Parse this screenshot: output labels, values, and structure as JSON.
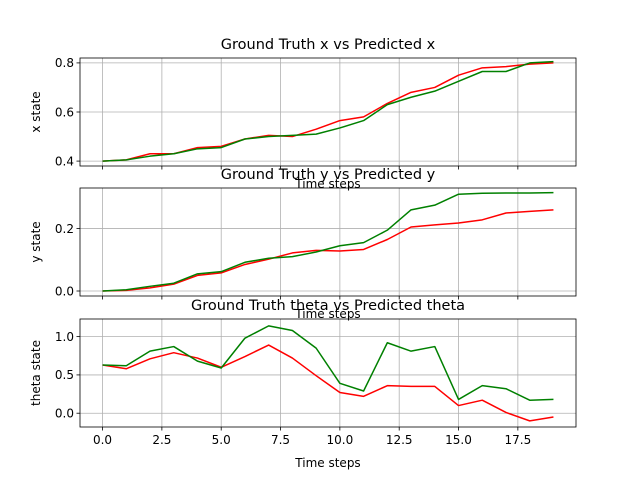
{
  "chart_data": [
    {
      "type": "line",
      "title": "Ground Truth x vs Predicted x",
      "xlabel": "Time steps",
      "ylabel": "x state",
      "xlim": [
        -0.95,
        19.95
      ],
      "ylim": [
        0.38,
        0.82
      ],
      "yticks": [
        0.4,
        0.6,
        0.8
      ],
      "yticklabels": [
        "0.4",
        "0.6",
        "0.8"
      ],
      "grid": true,
      "x": [
        0,
        1,
        2,
        3,
        4,
        5,
        6,
        7,
        8,
        9,
        10,
        11,
        12,
        13,
        14,
        15,
        16,
        17,
        18,
        19
      ],
      "series": [
        {
          "color": "#ff0000",
          "values": [
            0.4,
            0.405,
            0.43,
            0.43,
            0.455,
            0.46,
            0.49,
            0.505,
            0.5,
            0.53,
            0.565,
            0.58,
            0.635,
            0.68,
            0.7,
            0.75,
            0.78,
            0.785,
            0.795,
            0.8
          ]
        },
        {
          "color": "#008000",
          "values": [
            0.4,
            0.405,
            0.42,
            0.43,
            0.45,
            0.455,
            0.49,
            0.5,
            0.505,
            0.51,
            0.535,
            0.565,
            0.63,
            0.66,
            0.685,
            0.725,
            0.765,
            0.765,
            0.8,
            0.805
          ]
        }
      ]
    },
    {
      "type": "line",
      "title": "Ground Truth y vs Predicted y",
      "xlabel": "Time steps",
      "ylabel": "y state",
      "xlim": [
        -0.95,
        19.95
      ],
      "ylim": [
        -0.016,
        0.33
      ],
      "yticks": [
        0.0,
        0.2
      ],
      "yticklabels": [
        "0.0",
        "0.2"
      ],
      "grid": true,
      "x": [
        0,
        1,
        2,
        3,
        4,
        5,
        6,
        7,
        8,
        9,
        10,
        11,
        12,
        13,
        14,
        15,
        16,
        17,
        18,
        19
      ],
      "series": [
        {
          "color": "#ff0000",
          "values": [
            0.0,
            0.002,
            0.01,
            0.022,
            0.05,
            0.058,
            0.085,
            0.102,
            0.122,
            0.13,
            0.128,
            0.133,
            0.165,
            0.205,
            0.212,
            0.218,
            0.228,
            0.25,
            0.255,
            0.26
          ]
        },
        {
          "color": "#008000",
          "values": [
            0.0,
            0.004,
            0.015,
            0.025,
            0.055,
            0.062,
            0.092,
            0.105,
            0.11,
            0.125,
            0.145,
            0.155,
            0.195,
            0.26,
            0.275,
            0.31,
            0.313,
            0.314,
            0.314,
            0.315
          ]
        }
      ]
    },
    {
      "type": "line",
      "title": "Ground Truth theta vs Predicted theta",
      "xlabel": "Time steps",
      "ylabel": "theta state",
      "xlim": [
        -0.95,
        19.95
      ],
      "ylim": [
        -0.18,
        1.23
      ],
      "yticks": [
        0.0,
        0.5,
        1.0
      ],
      "yticklabels": [
        "0.0",
        "0.5",
        "1.0"
      ],
      "xticks": [
        0.0,
        2.5,
        5.0,
        7.5,
        10.0,
        12.5,
        15.0,
        17.5
      ],
      "xticklabels": [
        "0.0",
        "2.5",
        "5.0",
        "7.5",
        "10.0",
        "12.5",
        "15.0",
        "17.5"
      ],
      "grid": true,
      "x": [
        0,
        1,
        2,
        3,
        4,
        5,
        6,
        7,
        8,
        9,
        10,
        11,
        12,
        13,
        14,
        15,
        16,
        17,
        18,
        19
      ],
      "series": [
        {
          "color": "#ff0000",
          "values": [
            0.63,
            0.58,
            0.71,
            0.79,
            0.72,
            0.6,
            0.74,
            0.89,
            0.72,
            0.49,
            0.27,
            0.22,
            0.36,
            0.35,
            0.35,
            0.1,
            0.17,
            0.01,
            -0.1,
            -0.05
          ]
        },
        {
          "color": "#008000",
          "values": [
            0.63,
            0.62,
            0.81,
            0.87,
            0.68,
            0.59,
            0.98,
            1.14,
            1.08,
            0.85,
            0.39,
            0.29,
            0.92,
            0.81,
            0.87,
            0.18,
            0.36,
            0.32,
            0.17,
            0.18
          ]
        }
      ]
    }
  ]
}
